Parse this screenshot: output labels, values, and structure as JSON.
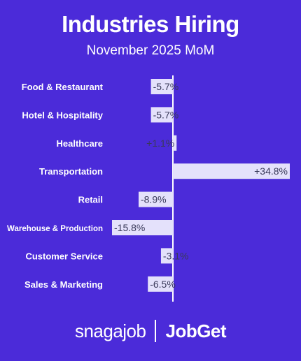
{
  "chart_data": {
    "type": "bar",
    "orientation": "horizontal",
    "title": "Industries Hiring",
    "subtitle": "November 2025 MoM",
    "categories": [
      "Food & Restaurant",
      "Hotel & Hospitality",
      "Healthcare",
      "Transportation",
      "Retail",
      "Warehouse & Production",
      "Customer Service",
      "Sales & Marketing"
    ],
    "values": [
      -5.7,
      -5.7,
      1.1,
      34.8,
      -8.9,
      -15.8,
      -3.1,
      -6.5
    ],
    "labels": [
      "-5.7%",
      "-5.7%",
      "+1.1%",
      "+34.8%",
      "-8.9%",
      "-15.8%",
      "-3.1%",
      "-6.5%"
    ],
    "unit": "%",
    "xlim": [
      -15.8,
      34.8
    ],
    "grid": false,
    "legend": "none",
    "bar_color": "#e4e1fb",
    "label_color": "#3a3a5a"
  },
  "footer": {
    "logo_left": "snagajob",
    "logo_right": "JobGet"
  }
}
